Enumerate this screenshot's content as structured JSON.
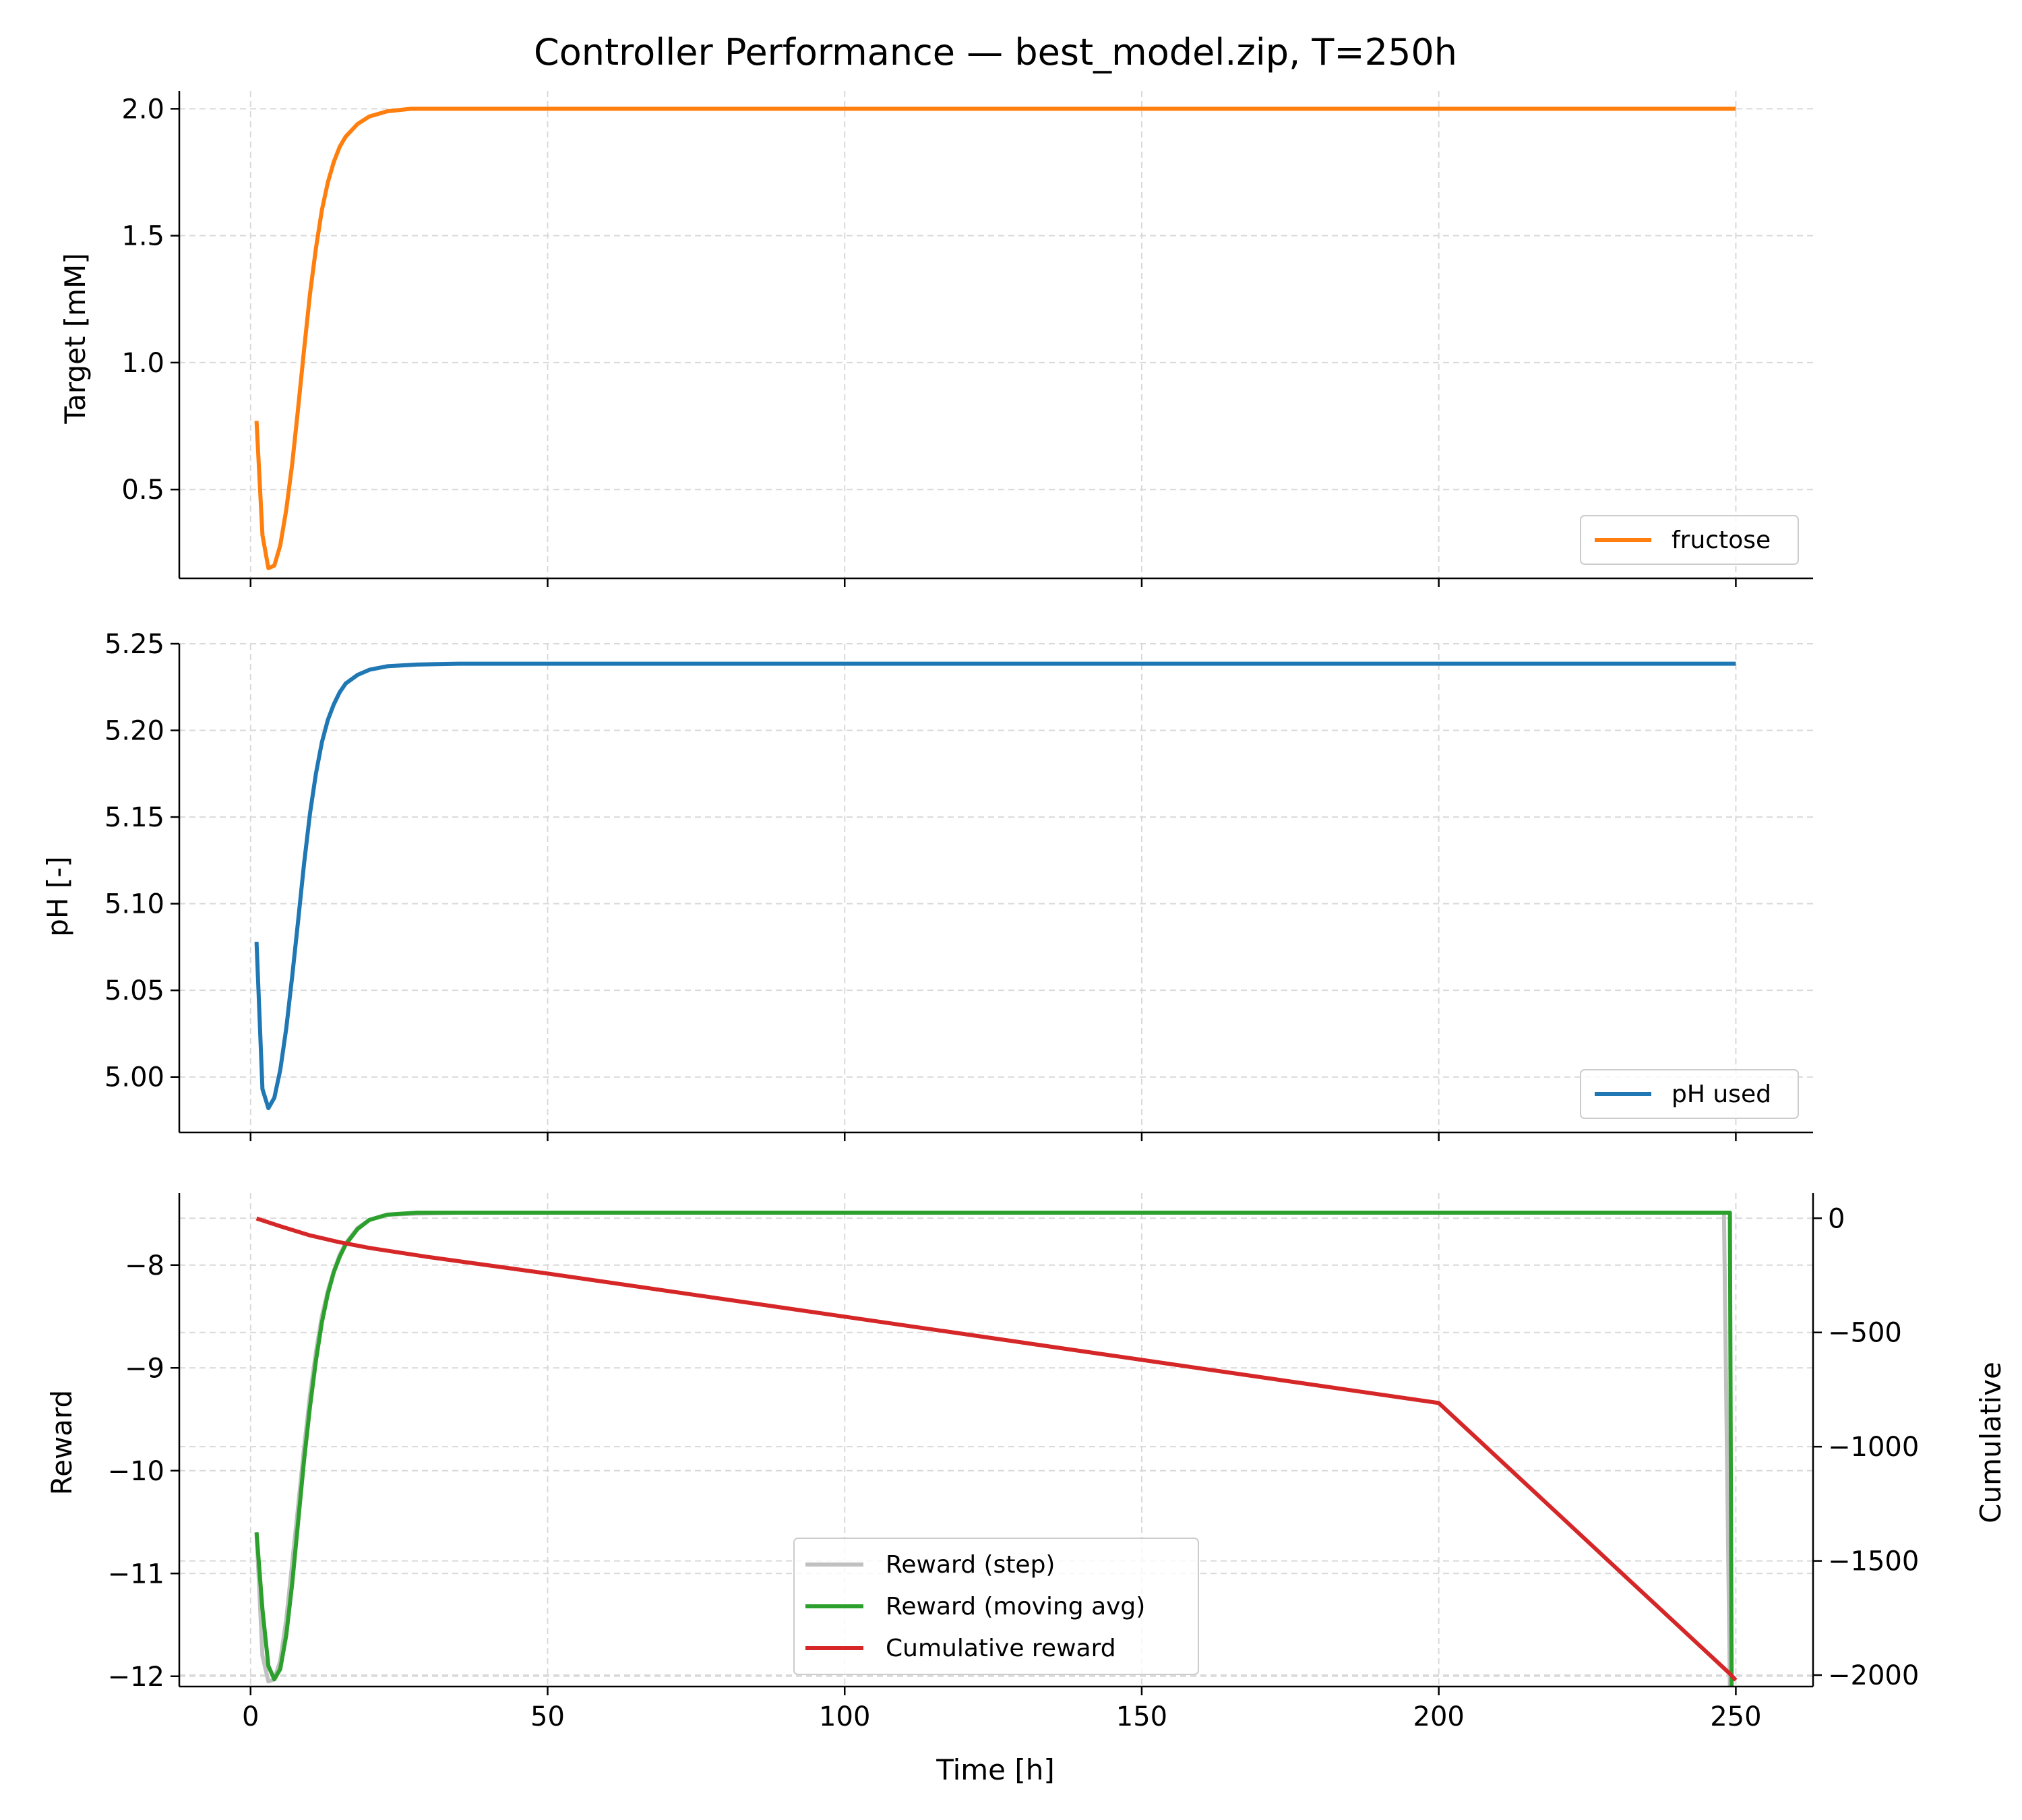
{
  "title": "Controller Performance — best_model.zip, T=250h",
  "chart_data": [
    {
      "type": "line",
      "panel": "top",
      "xlabel": "",
      "ylabel": "Target [mM]",
      "xlim": [
        -12,
        263
      ],
      "ylim": [
        0.15,
        2.07
      ],
      "yticks": [
        0.5,
        1.0,
        1.5,
        2.0
      ],
      "ytick_labels": [
        "0.5",
        "1.0",
        "1.5",
        "2.0"
      ],
      "grid": true,
      "legend_position": "lower-right",
      "series": [
        {
          "name": "fructose",
          "color": "#ff7f0e",
          "points": [
            [
              1,
              0.77
            ],
            [
              2,
              0.32
            ],
            [
              3,
              0.19
            ],
            [
              4,
              0.2
            ],
            [
              5,
              0.28
            ],
            [
              6,
              0.42
            ],
            [
              7,
              0.6
            ],
            [
              8,
              0.82
            ],
            [
              9,
              1.05
            ],
            [
              10,
              1.27
            ],
            [
              11,
              1.45
            ],
            [
              12,
              1.6
            ],
            [
              13,
              1.71
            ],
            [
              14,
              1.79
            ],
            [
              15,
              1.85
            ],
            [
              16,
              1.89
            ],
            [
              18,
              1.94
            ],
            [
              20,
              1.97
            ],
            [
              23,
              1.99
            ],
            [
              27,
              2.0
            ],
            [
              35,
              2.0
            ],
            [
              250,
              2.0
            ]
          ]
        }
      ]
    },
    {
      "type": "line",
      "panel": "middle",
      "xlabel": "",
      "ylabel": "pH [-]",
      "xlim": [
        -12,
        263
      ],
      "ylim": [
        4.968,
        5.25
      ],
      "yticks": [
        5.0,
        5.05,
        5.1,
        5.15,
        5.2,
        5.25
      ],
      "ytick_labels": [
        "5.00",
        "5.05",
        "5.10",
        "5.15",
        "5.20",
        "5.25"
      ],
      "grid": true,
      "legend_position": "lower-right",
      "series": [
        {
          "name": "pH used",
          "color": "#1f77b4",
          "points": [
            [
              1,
              5.078
            ],
            [
              2,
              4.993
            ],
            [
              3,
              4.982
            ],
            [
              4,
              4.988
            ],
            [
              5,
              5.004
            ],
            [
              6,
              5.028
            ],
            [
              7,
              5.058
            ],
            [
              8,
              5.09
            ],
            [
              9,
              5.123
            ],
            [
              10,
              5.152
            ],
            [
              11,
              5.175
            ],
            [
              12,
              5.193
            ],
            [
              13,
              5.206
            ],
            [
              14,
              5.215
            ],
            [
              15,
              5.222
            ],
            [
              16,
              5.227
            ],
            [
              18,
              5.232
            ],
            [
              20,
              5.235
            ],
            [
              23,
              5.237
            ],
            [
              28,
              5.238
            ],
            [
              35,
              5.2385
            ],
            [
              250,
              5.2385
            ]
          ]
        }
      ]
    },
    {
      "type": "line",
      "panel": "bottom",
      "xlabel": "Time [h]",
      "ylabel": "Reward",
      "y2label": "Cumulative",
      "xlim": [
        -12,
        263
      ],
      "xticks": [
        0,
        50,
        100,
        150,
        200,
        250
      ],
      "xtick_labels": [
        "0",
        "50",
        "100",
        "150",
        "200",
        "250"
      ],
      "ylim": [
        -12.1,
        -7.3
      ],
      "yticks": [
        -12,
        -11,
        -10,
        -9,
        -8
      ],
      "ytick_labels": [
        "−12",
        "−11",
        "−10",
        "−9",
        "−8"
      ],
      "y2lim": [
        -2050,
        110
      ],
      "y2ticks": [
        -2000,
        -1500,
        -1000,
        -500,
        0
      ],
      "y2tick_labels": [
        "−2000",
        "−1500",
        "−1000",
        "−500",
        "0"
      ],
      "grid": true,
      "legend_position": "lower-center",
      "series": [
        {
          "name": "Reward (step)",
          "color": "#c0c0c0",
          "axis": "left",
          "points": [
            [
              1,
              -10.6
            ],
            [
              2,
              -11.8
            ],
            [
              3,
              -12.05
            ],
            [
              4,
              -12.03
            ],
            [
              5,
              -11.85
            ],
            [
              6,
              -11.45
            ],
            [
              7,
              -10.9
            ],
            [
              8,
              -10.35
            ],
            [
              9,
              -9.78
            ],
            [
              10,
              -9.27
            ],
            [
              11,
              -8.85
            ],
            [
              12,
              -8.5
            ],
            [
              13,
              -8.25
            ],
            [
              14,
              -8.06
            ],
            [
              15,
              -7.9
            ],
            [
              16,
              -7.79
            ],
            [
              18,
              -7.64
            ],
            [
              20,
              -7.56
            ],
            [
              23,
              -7.51
            ],
            [
              28,
              -7.5
            ],
            [
              35,
              -7.49
            ],
            [
              248,
              -7.49
            ],
            [
              249,
              -12.1
            ]
          ]
        },
        {
          "name": "Reward (moving avg)",
          "color": "#2ca02c",
          "axis": "left",
          "points": [
            [
              1,
              -10.6
            ],
            [
              2,
              -11.35
            ],
            [
              3,
              -11.9
            ],
            [
              4,
              -12.03
            ],
            [
              5,
              -11.93
            ],
            [
              6,
              -11.6
            ],
            [
              7,
              -11.1
            ],
            [
              8,
              -10.5
            ],
            [
              9,
              -9.9
            ],
            [
              10,
              -9.38
            ],
            [
              11,
              -8.93
            ],
            [
              12,
              -8.56
            ],
            [
              13,
              -8.28
            ],
            [
              14,
              -8.07
            ],
            [
              15,
              -7.92
            ],
            [
              16,
              -7.8
            ],
            [
              18,
              -7.65
            ],
            [
              20,
              -7.56
            ],
            [
              23,
              -7.51
            ],
            [
              28,
              -7.49
            ],
            [
              35,
              -7.49
            ],
            [
              249,
              -7.49
            ],
            [
              249.3,
              -12.1
            ]
          ]
        },
        {
          "name": "Cumulative reward",
          "color": "#d62728",
          "axis": "right",
          "points": [
            [
              1,
              -1
            ],
            [
              5,
              -35
            ],
            [
              10,
              -75
            ],
            [
              15,
              -105
            ],
            [
              20,
              -130
            ],
            [
              30,
              -170
            ],
            [
              50,
              -242
            ],
            [
              100,
              -431
            ],
            [
              150,
              -620
            ],
            [
              200,
              -809
            ],
            [
              249,
              -1994
            ],
            [
              249,
              -1994
            ],
            [
              250,
              -2022
            ]
          ]
        }
      ]
    }
  ]
}
